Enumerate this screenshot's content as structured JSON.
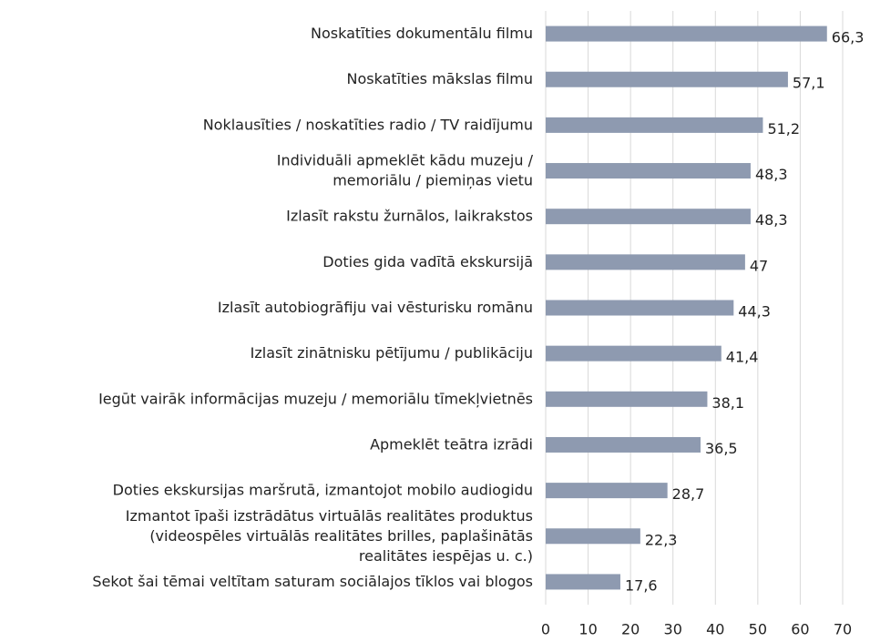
{
  "chart_data": {
    "type": "bar",
    "orientation": "horizontal",
    "categories": [
      "Noskatīties dokumentālu filmu",
      "Noskatīties mākslas filmu",
      "Noklausīties / noskatīties radio / TV raidījumu",
      "Individuāli apmeklēt kādu muzeju /\nmemoriālu / piemiņas vietu",
      "Izlasīt rakstu žurnālos, laikrakstos",
      "Doties gida vadītā ekskursijā",
      "Izlasīt autobiogrāfiju vai vēsturisku romānu",
      "Izlasīt zinātnisku pētījumu / publikāciju",
      "Iegūt vairāk informācijas muzeju / memoriālu tīmekļvietnēs",
      "Apmeklēt teātra izrādi",
      "Doties ekskursijas maršrutā, izmantojot mobilo audiogidu",
      "Izmantot īpaši izstrādātus virtuālās realitātes produktus\n(videospēles virtuālās realitātes brilles, paplašinātās\nrealitātes iespējas u. c.)",
      "Sekot šai tēmai veltītam saturam sociālajos tīklos vai blogos"
    ],
    "values": [
      66.3,
      57.1,
      51.2,
      48.3,
      48.3,
      47,
      44.3,
      41.4,
      38.1,
      36.5,
      28.7,
      22.3,
      17.6
    ],
    "value_labels": [
      "66,3",
      "57,1",
      "51,2",
      "48,3",
      "48,3",
      "47",
      "44,3",
      "41,4",
      "38,1",
      "36,5",
      "28,7",
      "22,3",
      "17,6"
    ],
    "color": "#8e9ab0",
    "xlim": [
      0,
      70
    ],
    "xticks": [
      0,
      10,
      20,
      30,
      40,
      50,
      60,
      70
    ],
    "grid": true
  }
}
